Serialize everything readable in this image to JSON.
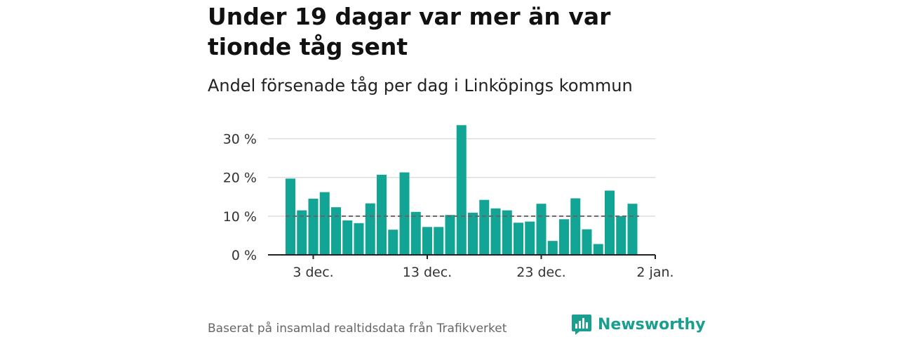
{
  "header": {
    "title": "Under 19 dagar var mer än var tionde tåg sent",
    "subtitle": "Andel försenade tåg per dag i Linköpings kommun"
  },
  "footer": {
    "source": "Baserat på insamlad realtidsdata från Trafikverket",
    "brand": "Newsworthy"
  },
  "colors": {
    "bar": "#12a595",
    "reference_line": "#666666",
    "grid": "#dddddd",
    "brand": "#1a9e8f"
  },
  "chart_data": {
    "type": "bar",
    "categories": [
      "1 dec.",
      "2 dec.",
      "3 dec.",
      "4 dec.",
      "5 dec.",
      "6 dec.",
      "7 dec.",
      "8 dec.",
      "9 dec.",
      "10 dec.",
      "11 dec.",
      "12 dec.",
      "13 dec.",
      "14 dec.",
      "15 dec.",
      "16 dec.",
      "17 dec.",
      "18 dec.",
      "19 dec.",
      "20 dec.",
      "21 dec.",
      "22 dec.",
      "23 dec.",
      "24 dec.",
      "25 dec.",
      "26 dec.",
      "27 dec.",
      "28 dec.",
      "29 dec.",
      "30 dec.",
      "31 dec."
    ],
    "values": [
      19.7,
      11.5,
      14.5,
      16.2,
      12.3,
      8.9,
      8.2,
      13.3,
      20.7,
      6.5,
      21.3,
      11.1,
      7.2,
      7.2,
      10.3,
      33.5,
      10.9,
      14.2,
      12.0,
      11.5,
      8.3,
      8.6,
      13.2,
      3.6,
      9.2,
      14.6,
      6.6,
      2.8,
      16.6,
      10.0,
      13.2
    ],
    "reference_value": 10,
    "x_ticks": [
      "3 dec.",
      "13 dec.",
      "23 dec.",
      "2 jan."
    ],
    "y_ticks": [
      "0 %",
      "10 %",
      "20 %",
      "30 %"
    ],
    "y_tick_values": [
      0,
      10,
      20,
      30
    ],
    "ylim": [
      0,
      35
    ],
    "xlabel": "",
    "ylabel": "",
    "grid": true
  }
}
